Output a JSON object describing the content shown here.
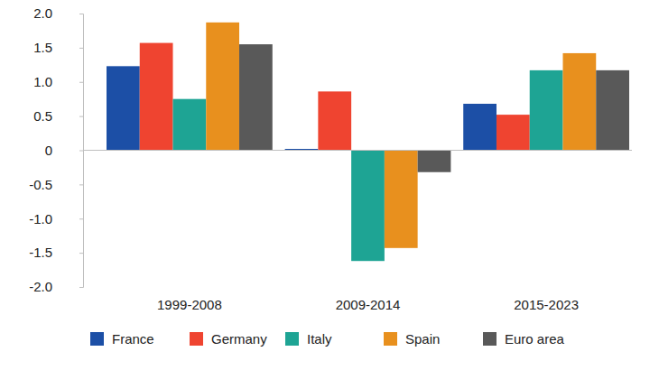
{
  "chart_data": {
    "type": "bar",
    "categories": [
      "1999-2008",
      "2009-2014",
      "2015-2023"
    ],
    "series": [
      {
        "name": "France",
        "color": "#1c4fa6",
        "values": [
          1.23,
          0.02,
          0.68
        ]
      },
      {
        "name": "Germany",
        "color": "#ef4430",
        "values": [
          1.57,
          0.86,
          0.52
        ]
      },
      {
        "name": "Italy",
        "color": "#1ea494",
        "values": [
          0.75,
          -1.62,
          1.17
        ]
      },
      {
        "name": "Spain",
        "color": "#e8901e",
        "values": [
          1.87,
          -1.43,
          1.42
        ]
      },
      {
        "name": "Euro area",
        "color": "#595959",
        "values": [
          1.55,
          -0.32,
          1.17
        ]
      }
    ],
    "ylim": [
      -2,
      2
    ],
    "yticks": [
      {
        "value": -2,
        "label": "-2.0"
      },
      {
        "value": -1.5,
        "label": "-1.5"
      },
      {
        "value": -1,
        "label": "-1.0"
      },
      {
        "value": -0.5,
        "label": "-0.5"
      },
      0,
      {
        "value": 0.5,
        "label": "0.5"
      },
      {
        "value": 1,
        "label": "1.0"
      },
      {
        "value": 1.5,
        "label": "1.5"
      },
      {
        "value": 2,
        "label": "2.0"
      }
    ],
    "grid": false,
    "legend": "bottom"
  }
}
